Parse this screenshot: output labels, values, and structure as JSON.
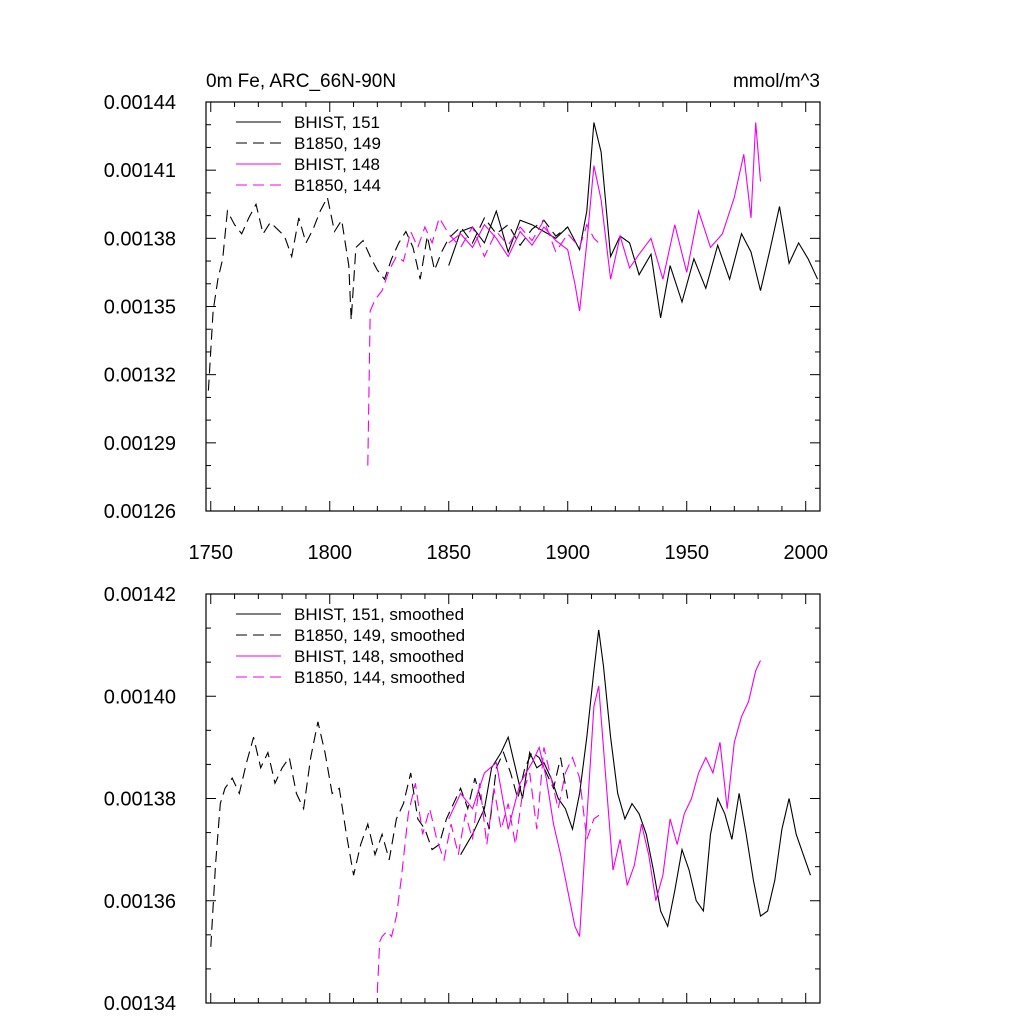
{
  "chart_data": [
    {
      "type": "line",
      "title": "0m Fe, ARC_66N-90N",
      "units": "mmol/m^3",
      "xlabel": "",
      "ylabel": "",
      "xlim": [
        1748,
        2006
      ],
      "ylim": [
        0.00126,
        0.00144
      ],
      "x_ticks": [
        1750,
        1800,
        1850,
        1900,
        1950,
        2000
      ],
      "x_tick_labels": [
        "1750",
        "1800",
        "1850",
        "1900",
        "1950",
        "2000"
      ],
      "y_ticks": [
        0.00126,
        0.00129,
        0.00132,
        0.00135,
        0.00138,
        0.00141,
        0.00144
      ],
      "y_tick_labels": [
        "0.00126",
        "0.00129",
        "0.00132",
        "0.00135",
        "0.00138",
        "0.00141",
        "0.00144"
      ],
      "legend_position": "top-left",
      "series": [
        {
          "name": "BHIST, 151",
          "color": "#000000",
          "dash": "solid",
          "x": [
            1850,
            1855,
            1860,
            1865,
            1870,
            1875,
            1880,
            1885,
            1890,
            1895,
            1900,
            1905,
            1908,
            1911,
            1914,
            1918,
            1922,
            1926,
            1930,
            1935,
            1939,
            1943,
            1948,
            1953,
            1958,
            1963,
            1968,
            1973,
            1977,
            1981,
            1985,
            1989,
            1993,
            1997,
            2001,
            2005
          ],
          "values": [
            0.001368,
            0.001383,
            0.001385,
            0.001378,
            0.001392,
            0.001374,
            0.001388,
            0.001386,
            0.001383,
            0.00138,
            0.001385,
            0.001375,
            0.001392,
            0.001431,
            0.001418,
            0.001372,
            0.001381,
            0.001378,
            0.001364,
            0.001373,
            0.001345,
            0.001368,
            0.001352,
            0.001371,
            0.001358,
            0.001377,
            0.001362,
            0.001382,
            0.001374,
            0.001357,
            0.001375,
            0.001394,
            0.001369,
            0.001378,
            0.001371,
            0.001362
          ]
        },
        {
          "name": "B1850, 149",
          "color": "#000000",
          "dash": "dashed",
          "x": [
            1749,
            1751,
            1753,
            1755,
            1757,
            1760,
            1763,
            1766,
            1769,
            1772,
            1775,
            1778,
            1781,
            1784,
            1787,
            1790,
            1793,
            1796,
            1799,
            1802,
            1805,
            1808,
            1809,
            1811,
            1814,
            1817,
            1820,
            1823,
            1826,
            1829,
            1832,
            1835,
            1838,
            1841,
            1844,
            1847,
            1850,
            1855,
            1860,
            1865,
            1870,
            1875,
            1880,
            1885,
            1890,
            1895,
            1900
          ],
          "values": [
            0.001313,
            0.001348,
            0.001362,
            0.001371,
            0.001392,
            0.001386,
            0.001382,
            0.001389,
            0.001395,
            0.001382,
            0.001387,
            0.001384,
            0.001381,
            0.001372,
            0.001389,
            0.001378,
            0.001384,
            0.001392,
            0.001398,
            0.001383,
            0.001388,
            0.001368,
            0.001344,
            0.001376,
            0.001379,
            0.001372,
            0.001366,
            0.001362,
            0.001371,
            0.001378,
            0.001383,
            0.001376,
            0.001362,
            0.001381,
            0.001366,
            0.001374,
            0.00138,
            0.001385,
            0.001378,
            0.001389,
            0.001382,
            0.001386,
            0.001377,
            0.001384,
            0.001388,
            0.001381,
            0.001385
          ]
        },
        {
          "name": "BHIST, 148",
          "color": "#ee00ee",
          "dash": "solid",
          "x": [
            1850,
            1855,
            1860,
            1865,
            1870,
            1875,
            1880,
            1885,
            1890,
            1895,
            1900,
            1903,
            1905,
            1908,
            1911,
            1914,
            1918,
            1922,
            1926,
            1930,
            1935,
            1940,
            1945,
            1950,
            1955,
            1960,
            1965,
            1970,
            1974,
            1977,
            1979,
            1981
          ],
          "values": [
            0.001378,
            0.001382,
            0.001376,
            0.001386,
            0.00138,
            0.001372,
            0.001383,
            0.001377,
            0.001385,
            0.001379,
            0.001375,
            0.00136,
            0.001348,
            0.001378,
            0.001412,
            0.001397,
            0.001362,
            0.001381,
            0.001367,
            0.001373,
            0.00138,
            0.001362,
            0.001386,
            0.001365,
            0.001392,
            0.001376,
            0.001382,
            0.001398,
            0.001417,
            0.001389,
            0.001431,
            0.001405
          ]
        },
        {
          "name": "B1850, 144",
          "color": "#ee00ee",
          "dash": "dashed",
          "x": [
            1816,
            1817,
            1819,
            1822,
            1825,
            1828,
            1831,
            1834,
            1837,
            1840,
            1843,
            1846,
            1850,
            1855,
            1860,
            1865,
            1870,
            1875,
            1880,
            1885,
            1890,
            1895,
            1900,
            1905,
            1908,
            1911,
            1914
          ],
          "values": [
            0.00128,
            0.001348,
            0.001353,
            0.001357,
            0.001366,
            0.001372,
            0.00137,
            0.001383,
            0.001376,
            0.001385,
            0.001378,
            0.001389,
            0.001382,
            0.001376,
            0.001385,
            0.001372,
            0.001383,
            0.001377,
            0.001385,
            0.001379,
            0.001388,
            0.001374,
            0.001382,
            0.001376,
            0.001386,
            0.00138,
            0.001377
          ]
        }
      ]
    },
    {
      "type": "line",
      "title": "",
      "xlabel": "",
      "ylabel": "",
      "xlim": [
        1748,
        2006
      ],
      "ylim": [
        0.00134,
        0.00142
      ],
      "x_ticks": [
        1750,
        1800,
        1850,
        1900,
        1950,
        2000
      ],
      "y_ticks": [
        0.00134,
        0.00136,
        0.00138,
        0.0014,
        0.00142
      ],
      "y_tick_labels": [
        "0.00134",
        "0.00136",
        "0.00138",
        "0.00140",
        "0.00142"
      ],
      "legend_position": "top-left",
      "series": [
        {
          "name": "BHIST, 151, smoothed",
          "color": "#000000",
          "dash": "solid",
          "x": [
            1855,
            1860,
            1865,
            1868,
            1872,
            1875,
            1878,
            1881,
            1884,
            1887,
            1890,
            1893,
            1896,
            1899,
            1902,
            1905,
            1908,
            1911,
            1913,
            1915,
            1918,
            1921,
            1924,
            1927,
            1930,
            1933,
            1936,
            1939,
            1942,
            1945,
            1948,
            1951,
            1954,
            1957,
            1960,
            1963,
            1966,
            1969,
            1972,
            1975,
            1978,
            1981,
            1984,
            1987,
            1990,
            1993,
            1996,
            1999,
            2002
          ],
          "values": [
            0.001369,
            0.001373,
            0.001378,
            0.001386,
            0.001389,
            0.001392,
            0.001386,
            0.00138,
            0.001389,
            0.001386,
            0.001387,
            0.001384,
            0.00138,
            0.001378,
            0.001374,
            0.001381,
            0.001392,
            0.001405,
            0.001413,
            0.001406,
            0.001392,
            0.001381,
            0.001376,
            0.001379,
            0.001377,
            0.001373,
            0.001366,
            0.001358,
            0.001355,
            0.001362,
            0.00137,
            0.001366,
            0.00136,
            0.001358,
            0.001373,
            0.00138,
            0.001377,
            0.001372,
            0.001381,
            0.001373,
            0.001364,
            0.001357,
            0.001358,
            0.001364,
            0.001374,
            0.00138,
            0.001373,
            0.001369,
            0.001365
          ]
        },
        {
          "name": "B1850, 149, smoothed",
          "color": "#000000",
          "dash": "dashed",
          "x": [
            1750,
            1752,
            1754,
            1756,
            1759,
            1762,
            1765,
            1768,
            1771,
            1774,
            1777,
            1780,
            1783,
            1786,
            1789,
            1792,
            1795,
            1798,
            1801,
            1804,
            1807,
            1810,
            1813,
            1816,
            1819,
            1822,
            1825,
            1828,
            1831,
            1834,
            1837,
            1840,
            1843,
            1846,
            1849,
            1852,
            1855,
            1858,
            1861,
            1864,
            1867,
            1870,
            1873,
            1876,
            1879,
            1882,
            1885,
            1888,
            1891,
            1894,
            1897,
            1900
          ],
          "values": [
            0.001351,
            0.001367,
            0.001379,
            0.001382,
            0.001384,
            0.001381,
            0.001387,
            0.001392,
            0.001386,
            0.001389,
            0.001383,
            0.001386,
            0.001388,
            0.001381,
            0.001378,
            0.001388,
            0.001395,
            0.001389,
            0.001381,
            0.001382,
            0.001373,
            0.001365,
            0.001371,
            0.001375,
            0.001369,
            0.001373,
            0.001368,
            0.001376,
            0.001379,
            0.001385,
            0.001376,
            0.001374,
            0.00137,
            0.001371,
            0.001376,
            0.001379,
            0.001382,
            0.001378,
            0.001384,
            0.001379,
            0.001374,
            0.001386,
            0.001389,
            0.001385,
            0.00138,
            0.001386,
            0.001389,
            0.001388,
            0.001385,
            0.001382,
            0.001388,
            0.00138
          ]
        },
        {
          "name": "BHIST, 148, smoothed",
          "color": "#ee00ee",
          "dash": "solid",
          "x": [
            1850,
            1855,
            1860,
            1865,
            1870,
            1875,
            1880,
            1885,
            1888,
            1891,
            1894,
            1897,
            1900,
            1903,
            1905,
            1908,
            1911,
            1913,
            1916,
            1919,
            1922,
            1925,
            1928,
            1931,
            1934,
            1937,
            1940,
            1943,
            1946,
            1949,
            1952,
            1955,
            1958,
            1961,
            1964,
            1967,
            1970,
            1973,
            1976,
            1979,
            1981
          ],
          "values": [
            0.001376,
            0.001381,
            0.001378,
            0.001385,
            0.001387,
            0.001374,
            0.001383,
            0.001387,
            0.00139,
            0.001384,
            0.001375,
            0.001369,
            0.001362,
            0.001355,
            0.001353,
            0.001376,
            0.001398,
            0.001402,
            0.001384,
            0.001366,
            0.001372,
            0.001363,
            0.001367,
            0.001375,
            0.001369,
            0.00136,
            0.001365,
            0.001376,
            0.001371,
            0.001377,
            0.00138,
            0.001385,
            0.001388,
            0.001385,
            0.001391,
            0.001378,
            0.001391,
            0.001396,
            0.001399,
            0.001405,
            0.001407
          ]
        },
        {
          "name": "B1850, 144, smoothed",
          "color": "#ee00ee",
          "dash": "dashed",
          "x": [
            1820,
            1821,
            1822,
            1824,
            1826,
            1828,
            1830,
            1833,
            1836,
            1839,
            1842,
            1845,
            1848,
            1851,
            1854,
            1857,
            1860,
            1863,
            1866,
            1869,
            1872,
            1875,
            1878,
            1881,
            1884,
            1887,
            1890,
            1893,
            1896,
            1899,
            1902,
            1905,
            1908,
            1911,
            1914
          ],
          "values": [
            0.001342,
            0.001352,
            0.001353,
            0.001354,
            0.001353,
            0.001357,
            0.001364,
            0.001377,
            0.001383,
            0.001373,
            0.001378,
            0.001372,
            0.001368,
            0.001375,
            0.001369,
            0.001377,
            0.001372,
            0.001383,
            0.001371,
            0.001382,
            0.001374,
            0.001379,
            0.001371,
            0.001381,
            0.001385,
            0.001374,
            0.00139,
            0.001384,
            0.001378,
            0.001385,
            0.001388,
            0.001384,
            0.001372,
            0.001376,
            0.001377
          ]
        }
      ]
    }
  ]
}
